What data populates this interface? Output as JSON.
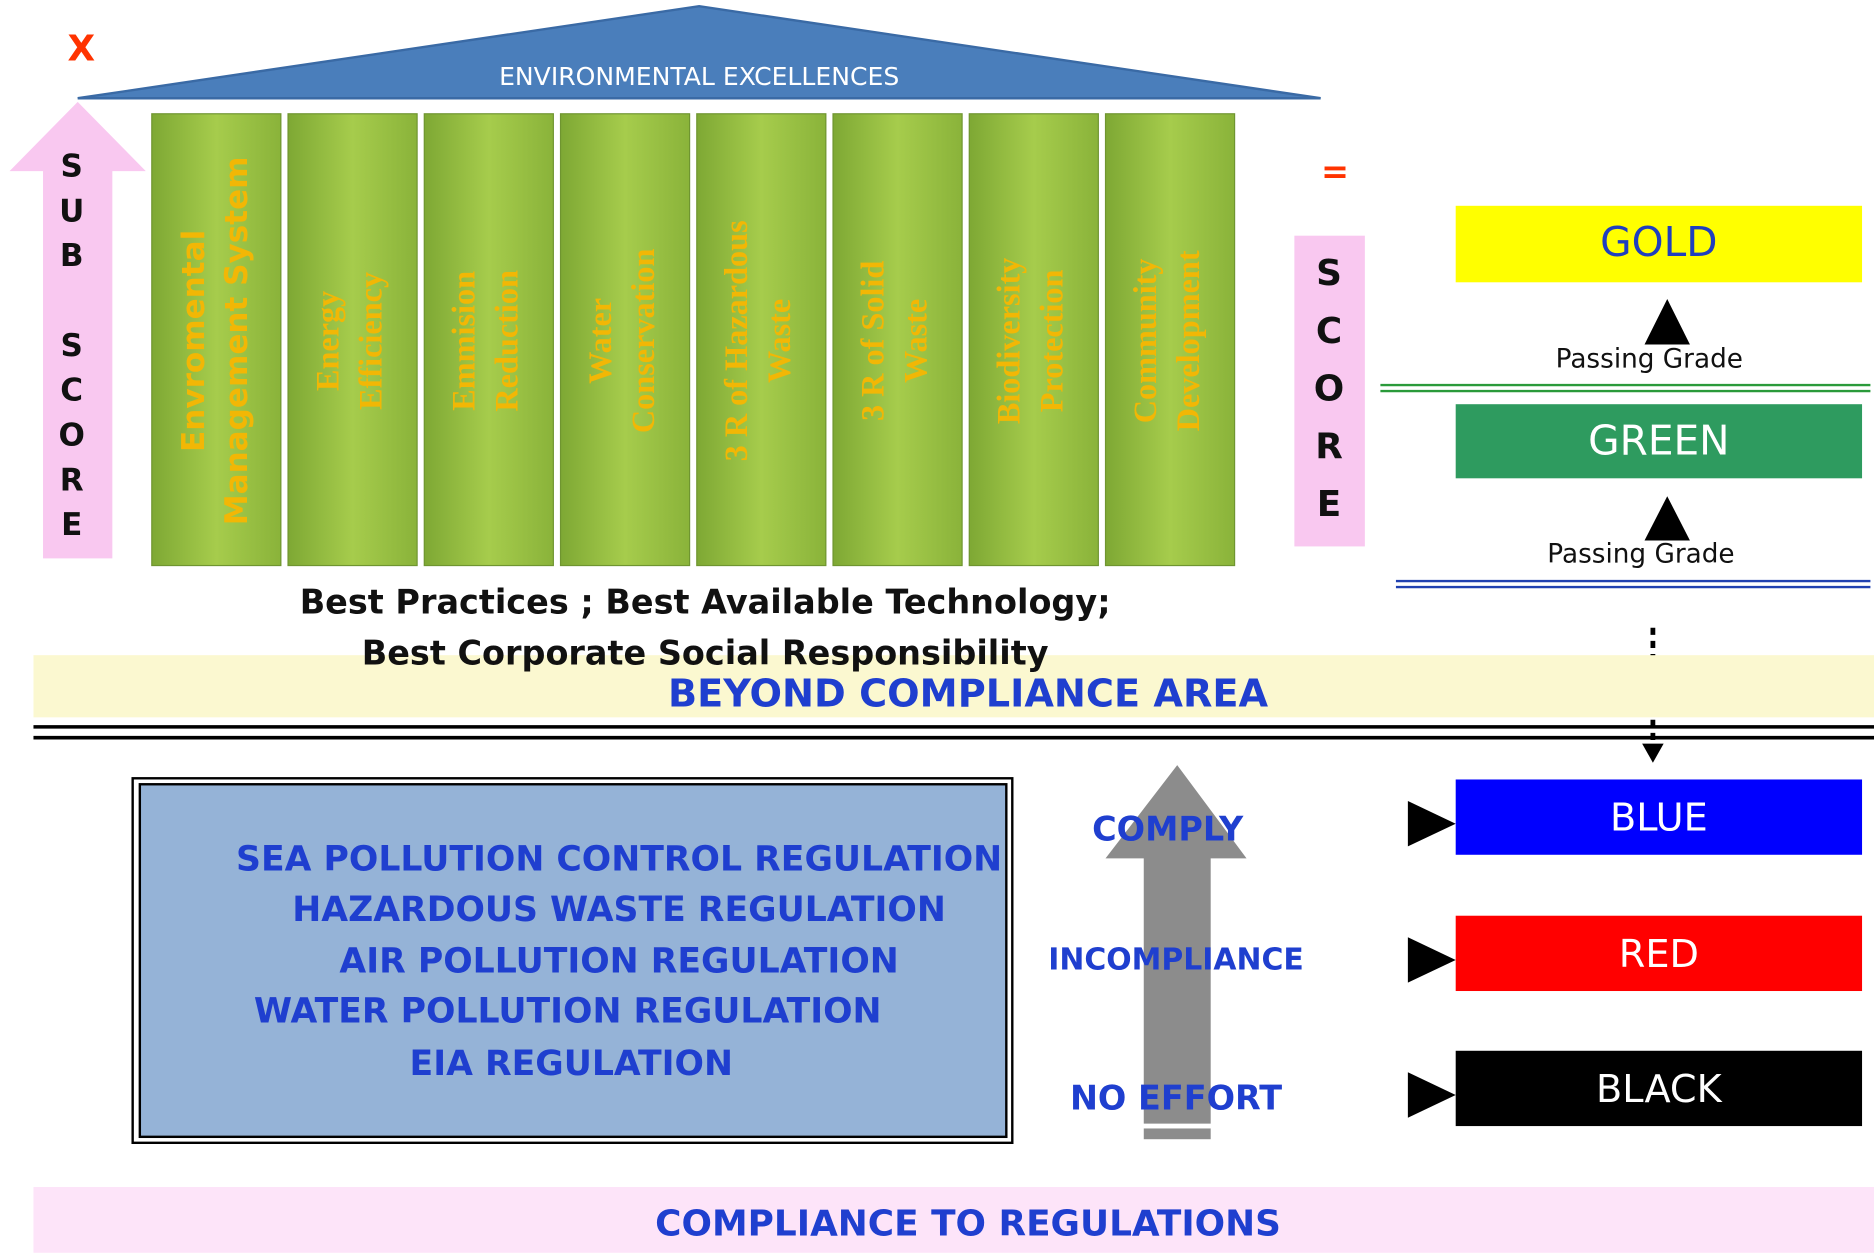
{
  "roof_title": "ENVIRONMENTAL EXCELLENCES",
  "multiply": "X",
  "sub_score": "SUB SCORE",
  "equals": "=",
  "score": "SCORE",
  "pillars": [
    [
      "Envromental",
      "Management System"
    ],
    [
      "Energy",
      "Efficiency"
    ],
    [
      "Emmision",
      "Reduction"
    ],
    [
      "Water",
      "Conservation"
    ],
    [
      "3 R of Hazardous",
      "Waste"
    ],
    [
      "3 R of Solid",
      "Waste"
    ],
    [
      "Biodiversity",
      "Protection"
    ],
    [
      "Community",
      "Development"
    ]
  ],
  "best_practices": [
    "Best Practices ; Best Available Technology;",
    "Best Corporate Social Responsibility"
  ],
  "beyond_area": "BEYOND COMPLIANCE AREA",
  "grades": {
    "gold": "GOLD",
    "green": "GREEN",
    "blue": "BLUE",
    "red": "RED",
    "black": "BLACK"
  },
  "passing_grade": [
    "Passing Grade",
    "Passing Grade"
  ],
  "regulations": [
    "SEA POLLUTION CONTROL REGULATION",
    "HAZARDOUS WASTE REGULATION",
    "AIR POLLUTION REGULATION",
    "WATER POLLUTION REGULATION",
    "EIA REGULATION"
  ],
  "levels": [
    "COMPLY",
    "INCOMPLIANCE",
    "NO EFFORT"
  ],
  "compliance_area": "COMPLIANCE TO REGULATIONS"
}
